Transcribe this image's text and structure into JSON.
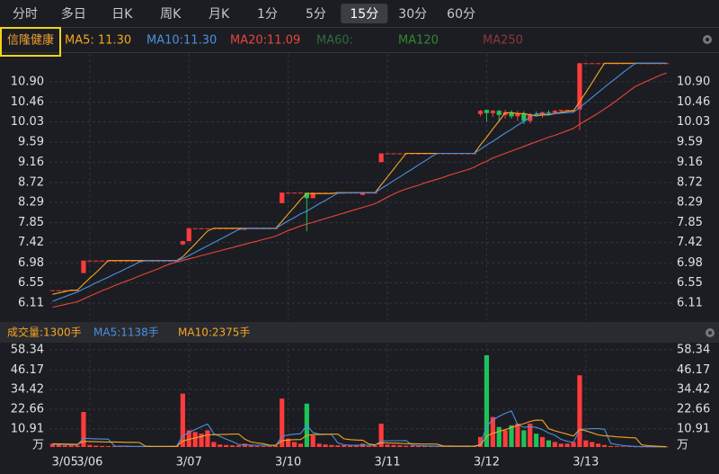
{
  "tabs": [
    "分时",
    "多日",
    "日K",
    "周K",
    "月K",
    "1分",
    "5分",
    "15分",
    "30分",
    "60分"
  ],
  "selected_tab": 7,
  "stock_name": "信隆健康",
  "price_legend": [
    {
      "text": "MA5: 11.30",
      "color": "#f5a623"
    },
    {
      "text": "MA10:11.30",
      "color": "#4a90e2"
    },
    {
      "text": "MA20:11.09",
      "color": "#e8453c"
    },
    {
      "text": "MA60:",
      "color": "#2f6b3a"
    },
    {
      "text": "MA120",
      "color": "#2f8a2f"
    },
    {
      "text": "MA250",
      "color": "#8c3838"
    }
  ],
  "volume_legend": [
    {
      "text": "成交量:1300手",
      "color": "#f5a623"
    },
    {
      "text": "MA5:1138手",
      "color": "#4a90e2"
    },
    {
      "text": "MA10:2375手",
      "color": "#f5a623"
    }
  ],
  "chart_data": [
    {
      "type": "candlestick",
      "categories": [
        null,
        null,
        "3/05",
        null,
        null,
        null,
        "3/06",
        null,
        null,
        null,
        null,
        null,
        null,
        null,
        null,
        null,
        null,
        null,
        null,
        null,
        null,
        null,
        "3/07",
        null,
        null,
        null,
        null,
        null,
        null,
        null,
        null,
        null,
        null,
        null,
        null,
        null,
        null,
        null,
        "3/10",
        null,
        null,
        null,
        null,
        null,
        null,
        null,
        null,
        null,
        null,
        null,
        null,
        null,
        null,
        null,
        "3/11",
        null,
        null,
        null,
        null,
        null,
        null,
        null,
        null,
        null,
        null,
        null,
        null,
        null,
        null,
        null,
        "3/12",
        null,
        null,
        null,
        null,
        null,
        null,
        null,
        null,
        null,
        null,
        null,
        null,
        null,
        null,
        null,
        "3/13",
        null,
        null,
        null,
        null,
        null,
        null,
        null,
        null,
        null,
        null,
        null,
        null,
        null
      ],
      "open": [
        6.39,
        6.39,
        6.39,
        6.39,
        6.39,
        6.76,
        7.03,
        7.03,
        7.03,
        7.03,
        7.03,
        7.03,
        7.03,
        7.03,
        7.03,
        7.03,
        7.03,
        7.03,
        7.03,
        7.03,
        7.03,
        7.38,
        7.45,
        7.73,
        7.73,
        7.73,
        7.73,
        7.73,
        7.73,
        7.73,
        7.73,
        7.7,
        7.73,
        7.73,
        7.73,
        7.73,
        7.73,
        8.27,
        8.5,
        8.5,
        8.5,
        8.5,
        8.38,
        8.5,
        8.5,
        8.5,
        8.5,
        8.5,
        8.5,
        8.5,
        8.45,
        8.5,
        8.5,
        9.16,
        9.35,
        9.35,
        9.35,
        9.35,
        9.35,
        9.35,
        9.35,
        9.35,
        9.35,
        9.35,
        9.35,
        9.35,
        9.35,
        9.35,
        9.35,
        10.2,
        10.29,
        10.22,
        10.27,
        10.18,
        10.24,
        10.15,
        10.22,
        10.05,
        10.2,
        10.18,
        10.24,
        10.22,
        10.27,
        10.29,
        10.29,
        10.3,
        11.3,
        11.3,
        11.3,
        11.3,
        11.3,
        11.3,
        11.3,
        11.3,
        11.3,
        11.3,
        11.3,
        11.3,
        11.3,
        11.3
      ],
      "high": [
        6.39,
        6.39,
        6.39,
        6.39,
        6.39,
        7.03,
        7.03,
        7.03,
        7.03,
        7.03,
        7.03,
        7.03,
        7.03,
        7.03,
        7.03,
        7.03,
        7.03,
        7.03,
        7.03,
        7.03,
        7.03,
        7.46,
        7.73,
        7.73,
        7.73,
        7.73,
        7.73,
        7.73,
        7.73,
        7.73,
        7.73,
        7.73,
        7.73,
        7.73,
        7.73,
        7.73,
        7.73,
        8.5,
        8.5,
        8.5,
        8.5,
        8.5,
        8.5,
        8.5,
        8.5,
        8.5,
        8.5,
        8.5,
        8.5,
        8.5,
        8.5,
        8.5,
        8.5,
        9.35,
        9.35,
        9.35,
        9.35,
        9.35,
        9.35,
        9.35,
        9.35,
        9.35,
        9.35,
        9.35,
        9.35,
        9.35,
        9.35,
        9.35,
        9.35,
        10.29,
        10.29,
        10.29,
        10.29,
        10.29,
        10.28,
        10.27,
        10.26,
        10.22,
        10.26,
        10.25,
        10.28,
        10.29,
        10.29,
        10.29,
        10.29,
        11.3,
        11.3,
        11.3,
        11.3,
        11.3,
        11.3,
        11.3,
        11.3,
        11.3,
        11.3,
        11.3,
        11.3,
        11.3,
        11.3,
        11.3
      ],
      "low": [
        6.39,
        6.39,
        6.39,
        6.39,
        6.39,
        6.76,
        7.03,
        7.03,
        7.03,
        7.03,
        7.03,
        7.03,
        7.03,
        7.03,
        7.03,
        7.03,
        7.03,
        7.03,
        7.03,
        7.03,
        7.03,
        7.36,
        7.45,
        7.73,
        7.73,
        7.73,
        7.73,
        7.73,
        7.73,
        7.73,
        7.73,
        7.68,
        7.73,
        7.73,
        7.73,
        7.73,
        7.73,
        8.27,
        8.5,
        8.5,
        8.5,
        7.67,
        8.38,
        8.5,
        8.5,
        8.5,
        8.5,
        8.5,
        8.5,
        8.5,
        8.45,
        8.5,
        8.5,
        9.16,
        9.35,
        9.35,
        9.35,
        9.35,
        9.35,
        9.35,
        9.35,
        9.35,
        9.35,
        9.35,
        9.35,
        9.35,
        9.35,
        9.35,
        9.35,
        10.15,
        10.03,
        10.14,
        10.05,
        10.1,
        10.1,
        10.05,
        9.98,
        10.0,
        10.15,
        10.12,
        10.18,
        10.2,
        10.25,
        10.29,
        10.29,
        9.85,
        11.3,
        11.3,
        11.3,
        11.3,
        11.3,
        11.3,
        11.3,
        11.3,
        11.3,
        11.3,
        11.3,
        11.3,
        11.3,
        11.3
      ],
      "close": [
        6.39,
        6.39,
        6.39,
        6.39,
        6.39,
        7.03,
        7.03,
        7.03,
        7.03,
        7.03,
        7.03,
        7.03,
        7.03,
        7.03,
        7.03,
        7.03,
        7.03,
        7.03,
        7.03,
        7.03,
        7.03,
        7.45,
        7.73,
        7.73,
        7.73,
        7.73,
        7.73,
        7.73,
        7.73,
        7.73,
        7.73,
        7.73,
        7.73,
        7.73,
        7.73,
        7.73,
        7.73,
        8.5,
        8.5,
        8.5,
        8.5,
        8.38,
        8.5,
        8.5,
        8.5,
        8.5,
        8.5,
        8.5,
        8.5,
        8.5,
        8.5,
        8.5,
        8.5,
        9.35,
        9.35,
        9.35,
        9.35,
        9.35,
        9.35,
        9.35,
        9.35,
        9.35,
        9.35,
        9.35,
        9.35,
        9.35,
        9.35,
        9.35,
        9.35,
        10.27,
        10.22,
        10.27,
        10.18,
        10.24,
        10.15,
        10.22,
        10.05,
        10.2,
        10.18,
        10.24,
        10.22,
        10.27,
        10.29,
        10.29,
        10.29,
        11.3,
        11.3,
        11.3,
        11.3,
        11.3,
        11.3,
        11.3,
        11.3,
        11.3,
        11.3,
        11.3,
        11.3,
        11.3,
        11.3,
        11.3
      ],
      "up_color": "#ff3b3b",
      "down_color": "#1fc25a",
      "series": [
        {
          "color": "#f5a623",
          "values": [
            6.3,
            6.33,
            6.36,
            6.39,
            6.39,
            6.52,
            6.65,
            6.77,
            6.9,
            7.03,
            7.03,
            7.03,
            7.03,
            7.03,
            7.03,
            7.03,
            7.03,
            7.03,
            7.03,
            7.03,
            7.03,
            7.11,
            7.25,
            7.39,
            7.53,
            7.67,
            7.73,
            7.73,
            7.73,
            7.73,
            7.73,
            7.73,
            7.73,
            7.73,
            7.73,
            7.73,
            7.73,
            7.88,
            8.04,
            8.19,
            8.35,
            8.48,
            8.48,
            8.48,
            8.48,
            8.48,
            8.5,
            8.5,
            8.5,
            8.5,
            8.5,
            8.5,
            8.5,
            8.67,
            8.84,
            9.01,
            9.18,
            9.35,
            9.35,
            9.35,
            9.35,
            9.35,
            9.35,
            9.35,
            9.35,
            9.35,
            9.35,
            9.35,
            9.35,
            9.53,
            9.7,
            9.88,
            10.05,
            10.23,
            10.23,
            10.21,
            10.21,
            10.18,
            10.16,
            10.18,
            10.18,
            10.21,
            10.24,
            10.26,
            10.27,
            10.47,
            10.67,
            10.88,
            11.09,
            11.3,
            11.3,
            11.3,
            11.3,
            11.3,
            11.3,
            11.3,
            11.3,
            11.3,
            11.3,
            11.3
          ]
        },
        {
          "color": "#4a90e2",
          "values": [
            6.15,
            6.2,
            6.25,
            6.3,
            6.35,
            6.42,
            6.48,
            6.55,
            6.61,
            6.67,
            6.74,
            6.8,
            6.87,
            6.93,
            7.0,
            7.03,
            7.03,
            7.03,
            7.03,
            7.03,
            7.03,
            7.07,
            7.14,
            7.21,
            7.28,
            7.35,
            7.42,
            7.49,
            7.56,
            7.63,
            7.7,
            7.73,
            7.73,
            7.73,
            7.73,
            7.73,
            7.73,
            7.81,
            7.89,
            7.96,
            8.04,
            8.1,
            8.18,
            8.26,
            8.33,
            8.41,
            8.49,
            8.49,
            8.5,
            8.5,
            8.5,
            8.5,
            8.5,
            8.59,
            8.67,
            8.76,
            8.84,
            8.93,
            9.01,
            9.1,
            9.18,
            9.27,
            9.35,
            9.35,
            9.35,
            9.35,
            9.35,
            9.35,
            9.35,
            9.44,
            9.53,
            9.61,
            9.7,
            9.79,
            9.87,
            9.96,
            10.04,
            10.13,
            10.21,
            10.2,
            10.2,
            10.21,
            10.22,
            10.23,
            10.24,
            10.34,
            10.45,
            10.56,
            10.67,
            10.78,
            10.89,
            10.99,
            11.1,
            11.2,
            11.3,
            11.3,
            11.3,
            11.3,
            11.3,
            11.3
          ]
        },
        {
          "color": "#e8453c",
          "values": [
            6.02,
            6.05,
            6.08,
            6.11,
            6.14,
            6.2,
            6.26,
            6.32,
            6.38,
            6.43,
            6.49,
            6.54,
            6.59,
            6.64,
            6.7,
            6.75,
            6.8,
            6.85,
            6.91,
            6.96,
            7.0,
            7.03,
            7.07,
            7.1,
            7.14,
            7.17,
            7.21,
            7.24,
            7.28,
            7.31,
            7.35,
            7.38,
            7.42,
            7.45,
            7.49,
            7.52,
            7.56,
            7.62,
            7.68,
            7.73,
            7.78,
            7.82,
            7.86,
            7.9,
            7.94,
            7.98,
            8.02,
            8.06,
            8.1,
            8.14,
            8.18,
            8.22,
            8.26,
            8.33,
            8.4,
            8.47,
            8.53,
            8.58,
            8.62,
            8.66,
            8.71,
            8.75,
            8.79,
            8.83,
            8.88,
            8.92,
            8.96,
            9.0,
            9.05,
            9.12,
            9.18,
            9.25,
            9.3,
            9.35,
            9.4,
            9.45,
            9.5,
            9.55,
            9.6,
            9.65,
            9.7,
            9.74,
            9.79,
            9.84,
            9.89,
            9.98,
            10.06,
            10.14,
            10.22,
            10.31,
            10.4,
            10.5,
            10.6,
            10.7,
            10.8,
            10.86,
            10.92,
            10.98,
            11.04,
            11.09
          ]
        }
      ],
      "ylim": [
        5.76,
        11.5
      ],
      "yticks": [
        6.11,
        6.55,
        6.98,
        7.42,
        7.85,
        8.29,
        8.72,
        9.16,
        9.59,
        10.03,
        10.46,
        {
          "value": 10.9,
          "label": "10.90"
        }
      ],
      "grid": true
    },
    {
      "type": "bar",
      "values": [
        2,
        1.5,
        1,
        1,
        1,
        21,
        1.2,
        0.8,
        0.6,
        0.5,
        0.5,
        0.4,
        0.4,
        0.4,
        0.3,
        0.3,
        0.3,
        0.3,
        0.3,
        0.3,
        0.8,
        32,
        10,
        9,
        8,
        10,
        3,
        1.5,
        1.2,
        1,
        1,
        2,
        0.8,
        0.6,
        0.5,
        0.5,
        0.8,
        29,
        5,
        3,
        2,
        26,
        7,
        2,
        1.5,
        1.2,
        1,
        1,
        0.8,
        0.8,
        2,
        0.6,
        0.8,
        14,
        1.5,
        1.2,
        1,
        0.8,
        0.8,
        0.6,
        0.6,
        0.5,
        0.5,
        0.5,
        0.4,
        0.4,
        0.4,
        0.4,
        0.8,
        6,
        55,
        18,
        12,
        10,
        13,
        14,
        10,
        14,
        8,
        6,
        4,
        3,
        2,
        2,
        3,
        43,
        4,
        3,
        2,
        1.2,
        0.6,
        0.45,
        0.35,
        0.25,
        0.15,
        0.12,
        0.1,
        0.1,
        0.12,
        0.13
      ],
      "series": [
        {
          "color": "#4a90e2",
          "values": [
            1.6,
            1.6,
            1.5,
            1.4,
            1.3,
            5.3,
            5.0,
            4.9,
            4.8,
            4.7,
            0.6,
            0.5,
            0.5,
            0.4,
            0.4,
            0.3,
            0.3,
            0.3,
            0.3,
            0.3,
            0.4,
            6.7,
            8.7,
            10.5,
            12.2,
            13.8,
            8.0,
            6.3,
            4.7,
            3.3,
            1.5,
            1.3,
            1.2,
            1.1,
            1.0,
            0.9,
            0.9,
            6.4,
            7.2,
            7.7,
            8.0,
            13.0,
            8.6,
            7.8,
            7.7,
            7.5,
            2.5,
            1.3,
            1.1,
            1.0,
            1.1,
            1.0,
            1.1,
            3.6,
            3.8,
            3.8,
            3.8,
            3.9,
            1.1,
            0.9,
            0.7,
            0.6,
            0.5,
            0.5,
            0.4,
            0.4,
            0.4,
            0.4,
            0.5,
            1.6,
            12.6,
            16.2,
            18.4,
            20.2,
            21.6,
            13.4,
            11.8,
            12.2,
            11.8,
            10.4,
            8.4,
            7.0,
            4.6,
            3.4,
            2.8,
            10.6,
            10.8,
            11,
            11,
            10.6,
            2.2,
            1.45,
            0.92,
            0.57,
            0.36,
            0.26,
            0.19,
            0.14,
            0.12,
            0.11
          ]
        },
        {
          "color": "#f5a623",
          "values": [
            2.0,
            1.9,
            1.8,
            1.7,
            1.6,
            3.4,
            3.3,
            3.2,
            3.1,
            3.0,
            3.0,
            2.9,
            2.8,
            2.8,
            2.7,
            0.5,
            0.4,
            0.4,
            0.4,
            0.4,
            0.4,
            3.6,
            4.6,
            5.5,
            6.3,
            7.3,
            7.4,
            7.5,
            7.6,
            7.7,
            7.8,
            4.7,
            3.0,
            2.4,
            2.0,
            1.1,
            1.0,
            3.8,
            4.2,
            4.4,
            4.5,
            7.0,
            7.5,
            7.5,
            7.6,
            7.7,
            7.7,
            4.9,
            4.4,
            4.2,
            4.1,
            1.8,
            1.3,
            2.6,
            2.4,
            2.3,
            2.2,
            2.0,
            2.0,
            1.9,
            1.8,
            1.8,
            1.7,
            0.6,
            0.6,
            0.5,
            0.5,
            0.5,
            0.6,
            1.1,
            6.5,
            8.2,
            9.4,
            10.4,
            11.7,
            13.0,
            14.0,
            15.3,
            16.1,
            16.0,
            11.0,
            9.7,
            8.7,
            7.7,
            6.6,
            10.6,
            9.7,
            8.5,
            7.3,
            6.7,
            6.5,
            6.1,
            5.9,
            5.6,
            5.5,
            1.3,
            0.8,
            0.6,
            0.4,
            0.24
          ]
        }
      ],
      "ylim": [
        0,
        62
      ],
      "yticks": [
        10.91,
        22.66,
        34.42,
        46.17,
        58.34
      ],
      "unit": "万",
      "grid": true
    }
  ]
}
